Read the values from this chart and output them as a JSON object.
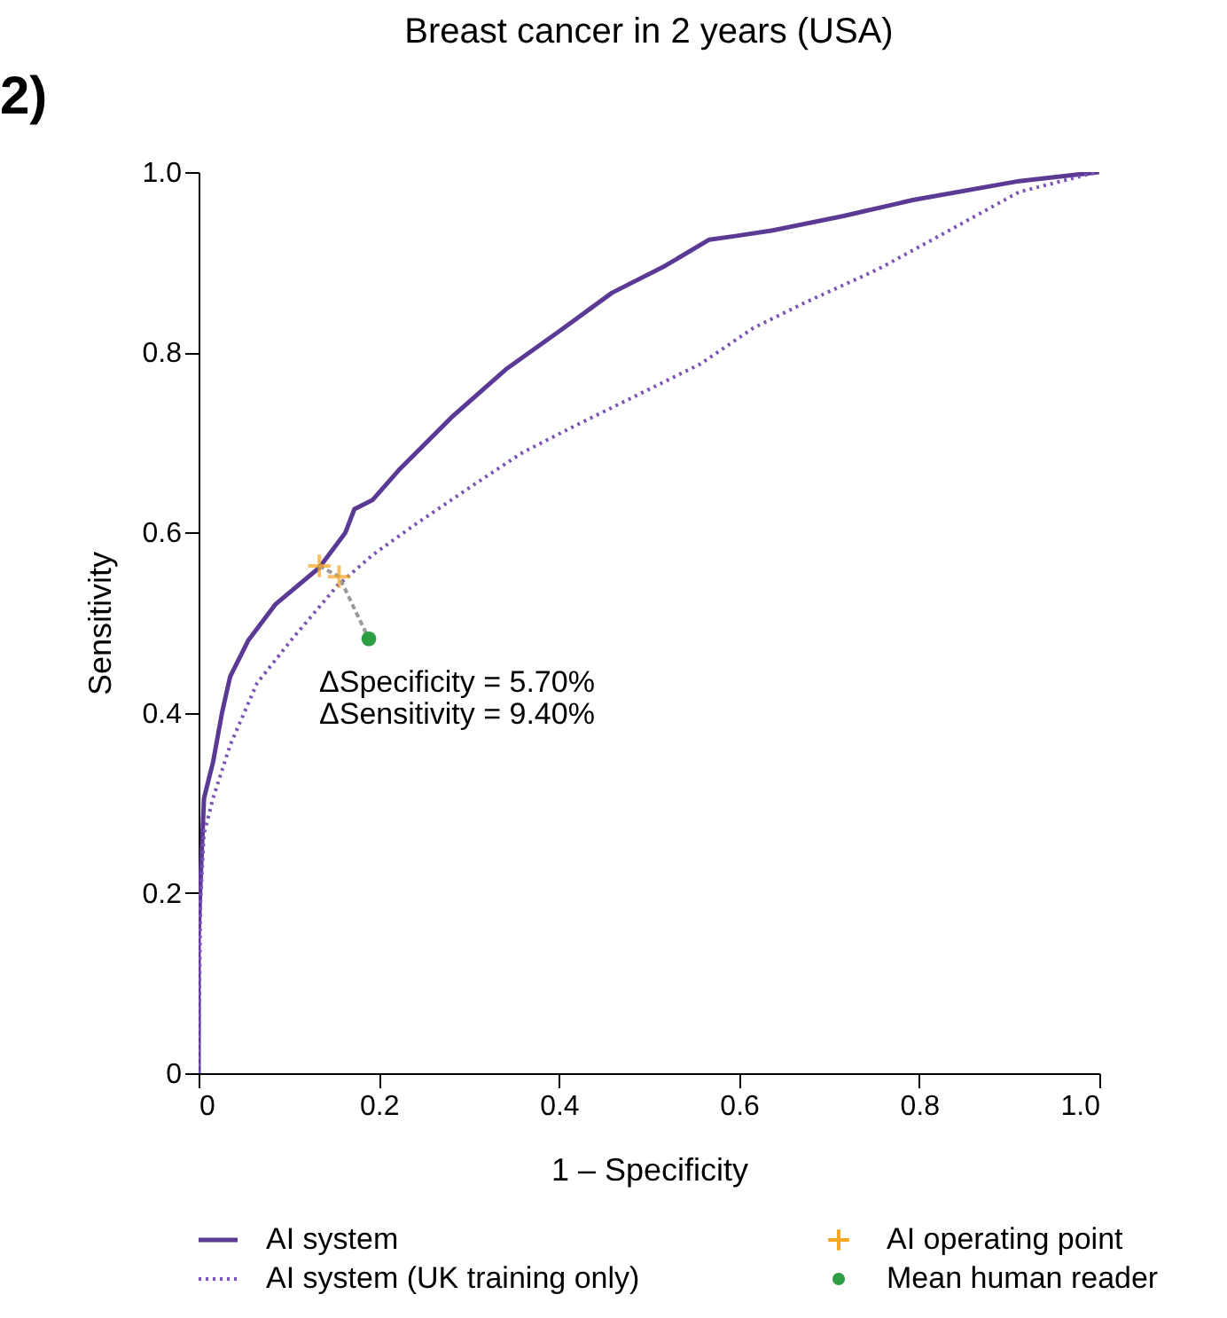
{
  "chart_data": {
    "type": "line",
    "title": "Breast cancer in 2 years (USA)",
    "xlabel": "1 – Specificity",
    "ylabel": "Sensitivity",
    "xlim": [
      0,
      1
    ],
    "ylim": [
      0,
      1
    ],
    "xticks": [
      {
        "value": 0,
        "label": "0"
      },
      0.2,
      0.4,
      0.6,
      0.8,
      {
        "value": 1,
        "label": "1.0"
      }
    ],
    "yticks": [
      {
        "value": 0,
        "label": "0"
      },
      0.2,
      0.4,
      0.6,
      0.8,
      {
        "value": 1,
        "label": "1.0"
      }
    ],
    "grid": false,
    "legend": "bottom",
    "series": [
      {
        "name": "AI system",
        "line_style": "solid",
        "color": "#5b3a96",
        "x": [
          0,
          0,
          0.002,
          0.006,
          0.016,
          0.026,
          0.035,
          0.055,
          0.085,
          0.134,
          0.163,
          0.173,
          0.193,
          0.222,
          0.281,
          0.341,
          0.4,
          0.459,
          0.518,
          0.567,
          0.596,
          0.636,
          0.715,
          0.793,
          0.911,
          1
        ],
        "values": [
          0,
          0.15,
          0.21,
          0.305,
          0.345,
          0.4,
          0.44,
          0.48,
          0.52,
          0.561,
          0.6,
          0.626,
          0.636,
          0.669,
          0.728,
          0.781,
          0.823,
          0.866,
          0.896,
          0.925,
          0.929,
          0.935,
          0.951,
          0.969,
          0.99,
          1
        ]
      },
      {
        "name": "AI system (UK training only)",
        "line_style": "dotted",
        "color": "#7a55b5",
        "x": [
          0,
          0.002,
          0.006,
          0.016,
          0.035,
          0.065,
          0.104,
          0.154,
          0.193,
          0.242,
          0.301,
          0.36,
          0.419,
          0.478,
          0.557,
          0.616,
          0.675,
          0.754,
          0.833,
          0.911,
          0.99,
          1
        ],
        "values": [
          0,
          0.187,
          0.266,
          0.305,
          0.364,
          0.433,
          0.482,
          0.541,
          0.575,
          0.61,
          0.65,
          0.689,
          0.719,
          0.748,
          0.787,
          0.827,
          0.856,
          0.892,
          0.935,
          0.978,
          0.998,
          1
        ]
      },
      {
        "line_style": "dashed",
        "color": "#999999",
        "x": [
          0.134,
          0.156,
          0.189
        ],
        "values": [
          0.563,
          0.551,
          0.482
        ]
      },
      {
        "name": "AI operating point",
        "type": "scatter",
        "marker": "cross",
        "color": "#f5a623",
        "x": [
          0.134,
          0.156
        ],
        "values": [
          0.563,
          0.551
        ]
      },
      {
        "name": "Mean human reader",
        "type": "scatter",
        "marker": "circle",
        "color": "#2e9e44",
        "x": [
          0.189
        ],
        "values": [
          0.482
        ]
      }
    ],
    "annotations": [
      "2)",
      "ΔSpecificity = 5.70%",
      "ΔSensitivity = 9.40%"
    ]
  }
}
